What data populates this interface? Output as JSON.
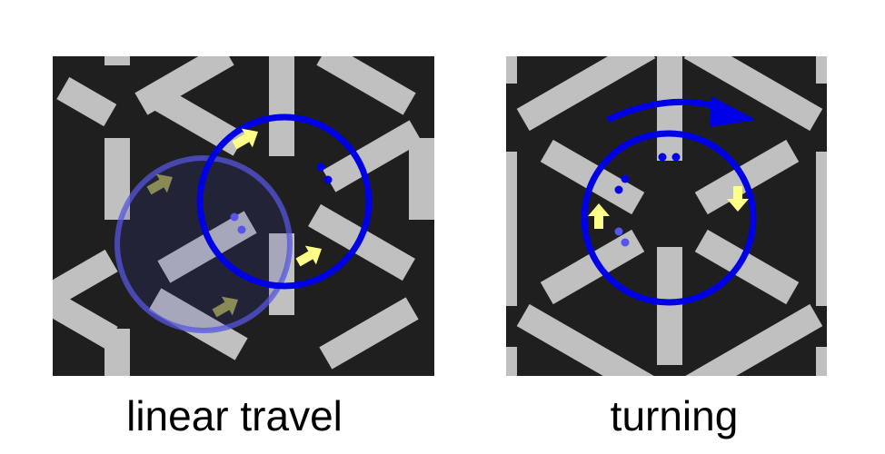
{
  "panels": {
    "linear": {
      "caption": "linear travel"
    },
    "turning": {
      "caption": "turning"
    }
  },
  "colors": {
    "background": "#1f1f1f",
    "bar": "#c0c0c0",
    "circle": "#0000e6",
    "circle_faded": "#5555dd",
    "arrow": "#ffff88",
    "arrow_faded": "#8a8a55",
    "dot": "#0000e6"
  },
  "icons": [
    "motion-arrow-icon",
    "rotation-arrow-icon",
    "marker-dots-icon"
  ]
}
